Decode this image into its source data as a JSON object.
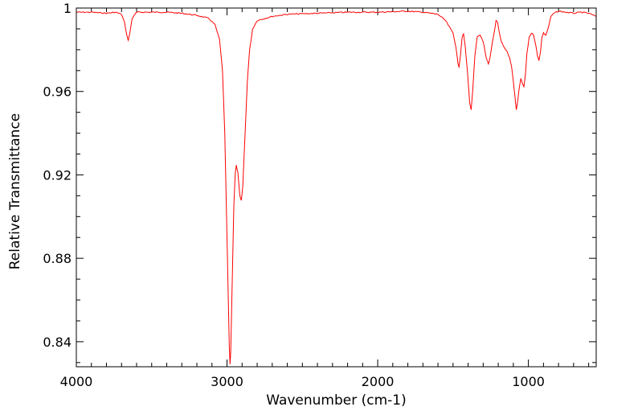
{
  "chart_data": {
    "type": "line",
    "title": "",
    "xlabel": "Wavenumber (cm-1)",
    "ylabel": "Relative Transmittance",
    "xlim": [
      4000,
      550
    ],
    "ylim": [
      0.828,
      1.0
    ],
    "x_reversed": true,
    "grid": false,
    "legend": "none",
    "x_ticks": [
      4000,
      3000,
      2000,
      1000
    ],
    "x_tick_labels": [
      "4000",
      "3000",
      "2000",
      "1000"
    ],
    "y_ticks": [
      0.84,
      0.88,
      0.92,
      0.96,
      1.0
    ],
    "y_tick_labels": [
      "0.84",
      "0.88",
      "0.92",
      "0.96",
      "1"
    ],
    "series": [
      {
        "color": "#ff0000",
        "points": [
          [
            4000,
            0.998
          ],
          [
            3900,
            0.998
          ],
          [
            3800,
            0.9975
          ],
          [
            3740,
            0.998
          ],
          [
            3700,
            0.997
          ],
          [
            3680,
            0.993
          ],
          [
            3665,
            0.987
          ],
          [
            3655,
            0.9845
          ],
          [
            3645,
            0.988
          ],
          [
            3630,
            0.995
          ],
          [
            3600,
            0.998
          ],
          [
            3500,
            0.998
          ],
          [
            3400,
            0.998
          ],
          [
            3300,
            0.9975
          ],
          [
            3200,
            0.9965
          ],
          [
            3120,
            0.995
          ],
          [
            3080,
            0.992
          ],
          [
            3050,
            0.985
          ],
          [
            3030,
            0.97
          ],
          [
            3015,
            0.94
          ],
          [
            3000,
            0.89
          ],
          [
            2990,
            0.855
          ],
          [
            2985,
            0.838
          ],
          [
            2980,
            0.829
          ],
          [
            2975,
            0.836
          ],
          [
            2968,
            0.86
          ],
          [
            2955,
            0.905
          ],
          [
            2945,
            0.921
          ],
          [
            2938,
            0.9245
          ],
          [
            2928,
            0.921
          ],
          [
            2915,
            0.91
          ],
          [
            2905,
            0.9075
          ],
          [
            2895,
            0.915
          ],
          [
            2880,
            0.94
          ],
          [
            2865,
            0.965
          ],
          [
            2850,
            0.98
          ],
          [
            2830,
            0.99
          ],
          [
            2800,
            0.994
          ],
          [
            2700,
            0.996
          ],
          [
            2600,
            0.997
          ],
          [
            2400,
            0.9975
          ],
          [
            2200,
            0.998
          ],
          [
            2000,
            0.998
          ],
          [
            1800,
            0.9985
          ],
          [
            1700,
            0.998
          ],
          [
            1650,
            0.9975
          ],
          [
            1600,
            0.997
          ],
          [
            1550,
            0.994
          ],
          [
            1500,
            0.988
          ],
          [
            1480,
            0.981
          ],
          [
            1467,
            0.973
          ],
          [
            1460,
            0.972
          ],
          [
            1450,
            0.978
          ],
          [
            1440,
            0.986
          ],
          [
            1430,
            0.9875
          ],
          [
            1420,
            0.982
          ],
          [
            1405,
            0.97
          ],
          [
            1390,
            0.955
          ],
          [
            1380,
            0.951
          ],
          [
            1370,
            0.96
          ],
          [
            1355,
            0.977
          ],
          [
            1340,
            0.986
          ],
          [
            1320,
            0.987
          ],
          [
            1300,
            0.984
          ],
          [
            1280,
            0.976
          ],
          [
            1265,
            0.973
          ],
          [
            1255,
            0.976
          ],
          [
            1240,
            0.983
          ],
          [
            1225,
            0.989
          ],
          [
            1215,
            0.994
          ],
          [
            1205,
            0.9935
          ],
          [
            1195,
            0.989
          ],
          [
            1180,
            0.984
          ],
          [
            1160,
            0.981
          ],
          [
            1140,
            0.979
          ],
          [
            1125,
            0.976
          ],
          [
            1112,
            0.972
          ],
          [
            1100,
            0.965
          ],
          [
            1090,
            0.958
          ],
          [
            1080,
            0.951
          ],
          [
            1070,
            0.956
          ],
          [
            1060,
            0.962
          ],
          [
            1050,
            0.966
          ],
          [
            1040,
            0.964
          ],
          [
            1030,
            0.962
          ],
          [
            1020,
            0.968
          ],
          [
            1010,
            0.978
          ],
          [
            995,
            0.986
          ],
          [
            980,
            0.988
          ],
          [
            965,
            0.987
          ],
          [
            950,
            0.982
          ],
          [
            940,
            0.977
          ],
          [
            930,
            0.975
          ],
          [
            920,
            0.979
          ],
          [
            910,
            0.986
          ],
          [
            900,
            0.988
          ],
          [
            885,
            0.987
          ],
          [
            870,
            0.99
          ],
          [
            850,
            0.996
          ],
          [
            830,
            0.9975
          ],
          [
            800,
            0.9985
          ],
          [
            750,
            0.998
          ],
          [
            700,
            0.9975
          ],
          [
            650,
            0.998
          ],
          [
            600,
            0.9975
          ],
          [
            550,
            0.996
          ]
        ]
      }
    ]
  }
}
